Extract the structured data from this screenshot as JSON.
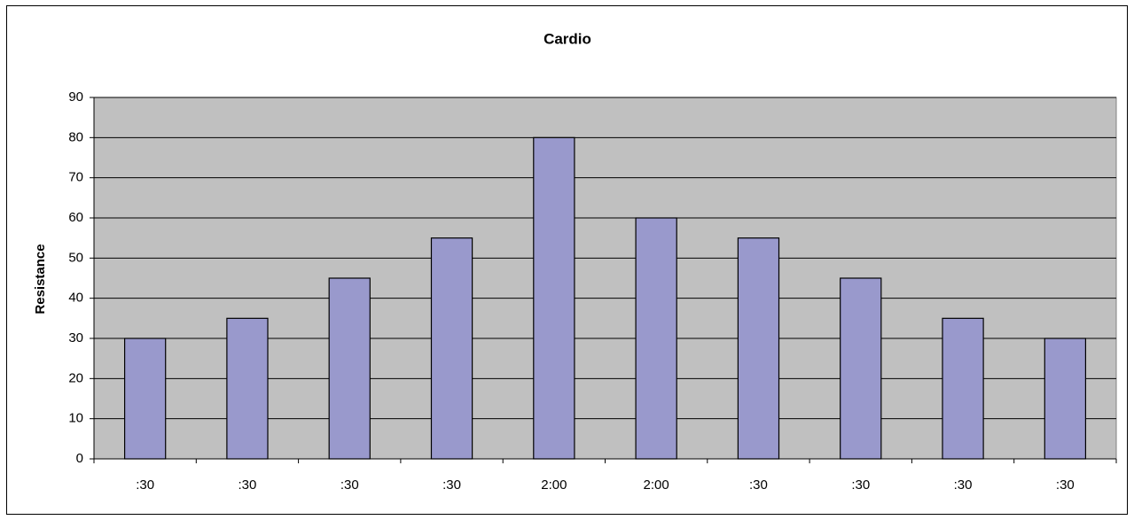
{
  "chart_data": {
    "type": "bar",
    "title": "Cardio",
    "y_label": "Resistance",
    "categories": [
      ":30",
      ":30",
      ":30",
      ":30",
      "2:00",
      "2:00",
      ":30",
      ":30",
      ":30",
      ":30"
    ],
    "values": [
      30,
      35,
      45,
      55,
      80,
      60,
      55,
      45,
      35,
      30
    ],
    "color": "#9999cc",
    "background": "#c0c0c0",
    "ylim": [
      0,
      90
    ],
    "yticks": [
      0,
      10,
      20,
      30,
      40,
      50,
      60,
      70,
      80,
      90
    ],
    "grid": true
  }
}
